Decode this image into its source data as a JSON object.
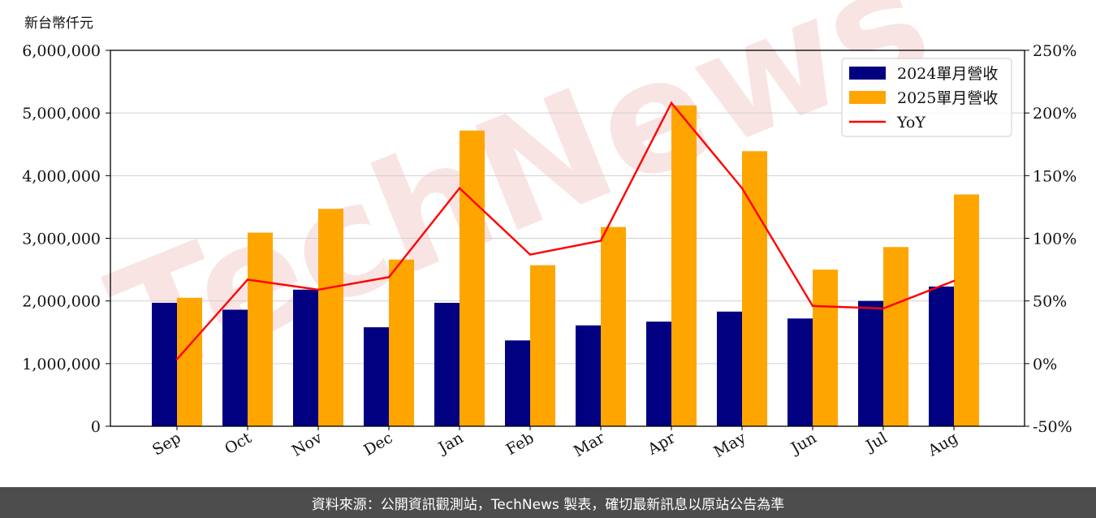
{
  "unit_label": "新台幣仟元",
  "footer_text": "資料來源：公開資訊觀測站，TechNews 製表，確切最新訊息以原站公告為準",
  "watermark": "TechNews",
  "colors": {
    "series_2024": "#000080",
    "series_2025": "#FFA500",
    "yoy": "#FF0000",
    "footer_bg": "#4d4d4d",
    "watermark": "#f2c4c4"
  },
  "chart_data": {
    "type": "bar",
    "categories": [
      "Sep",
      "Oct",
      "Nov",
      "Dec",
      "Jan",
      "Feb",
      "Mar",
      "Apr",
      "May",
      "Jun",
      "Jul",
      "Aug"
    ],
    "series": [
      {
        "name": "2024單月營收",
        "values": [
          1970000,
          1860000,
          2180000,
          1580000,
          1970000,
          1370000,
          1610000,
          1670000,
          1830000,
          1720000,
          2000000,
          2230000
        ]
      },
      {
        "name": "2025單月營收",
        "values": [
          2050000,
          3090000,
          3470000,
          2660000,
          4720000,
          2570000,
          3180000,
          5120000,
          4390000,
          2500000,
          2860000,
          3700000
        ]
      }
    ],
    "line_series": {
      "name": "YoY",
      "values": [
        3.5,
        67,
        59,
        69,
        140,
        87,
        98,
        208,
        140,
        46,
        44,
        66
      ]
    },
    "ylim": [
      0,
      6000000
    ],
    "yticks": [
      "0",
      "1,000,000",
      "2,000,000",
      "3,000,000",
      "4,000,000",
      "5,000,000",
      "6,000,000"
    ],
    "y2lim": [
      -50,
      250
    ],
    "y2ticks": [
      "-50%",
      "0%",
      "50%",
      "100%",
      "150%",
      "200%",
      "250%"
    ],
    "grid": true,
    "legend_position": "top-right"
  }
}
